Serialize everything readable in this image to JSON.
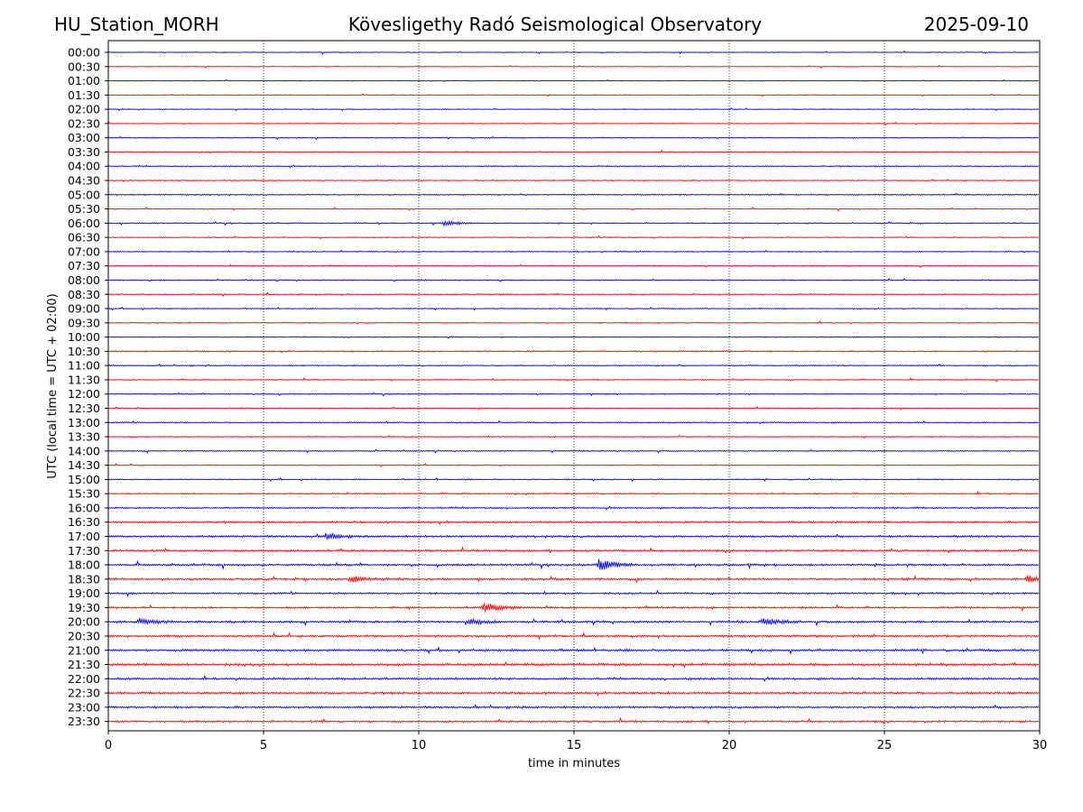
{
  "header": {
    "station": "HU_Station_MORH",
    "observatory": "Kövesligethy Radó Seismological Observatory",
    "date": "2025-09-10"
  },
  "chart_data": {
    "type": "line",
    "title": "Kövesligethy Radó Seismological Observatory",
    "xlabel": "time in minutes",
    "ylabel": "UTC (local time = UTC + 02:00)",
    "xlim": [
      0,
      30
    ],
    "xticks": [
      0,
      5,
      10,
      15,
      20,
      25,
      30
    ],
    "grid": "vertical dotted at x ticks",
    "colors": {
      "even_row": "#0000ff",
      "odd_row": "#ff0000",
      "grid": "#000000"
    },
    "rows": [
      "00:00",
      "00:30",
      "01:00",
      "01:30",
      "02:00",
      "02:30",
      "03:00",
      "03:30",
      "04:00",
      "04:30",
      "05:00",
      "05:30",
      "06:00",
      "06:30",
      "07:00",
      "07:30",
      "08:00",
      "08:30",
      "09:00",
      "09:30",
      "10:00",
      "10:30",
      "11:00",
      "11:30",
      "12:00",
      "12:30",
      "13:00",
      "13:30",
      "14:00",
      "14:30",
      "15:00",
      "15:30",
      "16:00",
      "16:30",
      "17:00",
      "17:30",
      "18:00",
      "18:30",
      "19:00",
      "19:30",
      "20:00",
      "20:30",
      "21:00",
      "21:30",
      "22:00",
      "22:30",
      "23:00",
      "23:30"
    ],
    "row_noise_level": [
      0.25,
      0.25,
      0.25,
      0.25,
      0.25,
      0.25,
      0.3,
      0.3,
      0.3,
      0.3,
      0.35,
      0.3,
      0.35,
      0.3,
      0.3,
      0.3,
      0.3,
      0.35,
      0.3,
      0.3,
      0.3,
      0.4,
      0.35,
      0.3,
      0.3,
      0.3,
      0.35,
      0.3,
      0.35,
      0.3,
      0.35,
      0.4,
      0.45,
      0.55,
      0.6,
      0.55,
      0.6,
      0.6,
      0.55,
      0.55,
      0.65,
      0.6,
      0.65,
      0.7,
      0.6,
      0.6,
      0.6,
      0.55
    ],
    "events": [
      {
        "row": "18:00",
        "minute": 15.8,
        "amplitude": 3.0
      },
      {
        "row": "18:30",
        "minute": 7.8,
        "amplitude": 1.6
      },
      {
        "row": "18:30",
        "minute": 29.6,
        "amplitude": 1.8
      },
      {
        "row": "19:30",
        "minute": 12.1,
        "amplitude": 2.6
      },
      {
        "row": "20:00",
        "minute": 21.1,
        "amplitude": 1.8
      },
      {
        "row": "20:00",
        "minute": 11.6,
        "amplitude": 1.4
      },
      {
        "row": "20:00",
        "minute": 1.0,
        "amplitude": 1.4
      },
      {
        "row": "17:00",
        "minute": 7.0,
        "amplitude": 1.3
      },
      {
        "row": "06:00",
        "minute": 10.8,
        "amplitude": 1.2
      }
    ]
  }
}
